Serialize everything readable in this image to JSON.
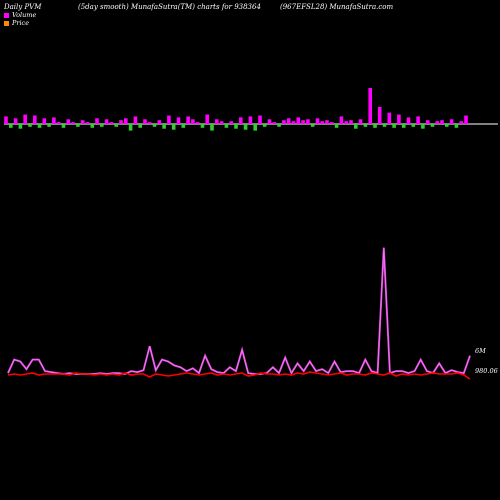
{
  "header": {
    "left": "Daily PVM",
    "mid": "(5day smooth) MunafaSutra(TM) charts for 938364",
    "right": "(967EFSL28) MunafaSutra.com"
  },
  "legend": {
    "volume": "Volume",
    "price": "Price"
  },
  "colors": {
    "volume_up": "#ff00ff",
    "volume_down": "#33cc33",
    "price_line": "#ff0000",
    "pvm_line": "#cc44cc",
    "axis": "#ffffff"
  },
  "chart_data": [
    {
      "type": "bar",
      "name": "volume",
      "values": [
        8,
        -4,
        6,
        -5,
        10,
        -3,
        9,
        -4,
        6,
        -3,
        7,
        2,
        -4,
        5,
        2,
        -3,
        4,
        2,
        -4,
        6,
        -3,
        5,
        2,
        -3,
        4,
        6,
        -7,
        8,
        -4,
        5,
        2,
        -3,
        4,
        -5,
        9,
        -6,
        7,
        -4,
        8,
        5,
        2,
        -4,
        10,
        -7,
        5,
        3,
        -4,
        3,
        -5,
        7,
        -6,
        8,
        -7,
        9,
        -3,
        5,
        2,
        -3,
        4,
        6,
        3,
        7,
        4,
        5,
        -3,
        6,
        3,
        4,
        2,
        -4,
        8,
        3,
        4,
        -5,
        5,
        -3,
        38,
        -4,
        18,
        -3,
        12,
        -4,
        10,
        -4,
        7,
        -3,
        8,
        -5,
        4,
        -3,
        3,
        4,
        -3,
        5,
        -4,
        3,
        9
      ],
      "ylim": [
        -8,
        38
      ]
    },
    {
      "type": "line",
      "name": "pvm",
      "values": [
        2,
        16,
        14,
        6,
        16,
        16,
        4,
        3,
        2,
        1,
        2,
        1,
        1,
        1,
        1,
        2,
        1,
        2,
        2,
        1,
        4,
        3,
        5,
        30,
        5,
        16,
        14,
        10,
        8,
        4,
        7,
        2,
        20,
        6,
        3,
        2,
        8,
        4,
        26,
        2,
        1,
        1,
        2,
        8,
        2,
        18,
        2,
        12,
        4,
        14,
        4,
        6,
        2,
        14,
        3,
        4,
        4,
        2,
        16,
        4,
        2,
        132,
        2,
        4,
        4,
        2,
        4,
        16,
        4,
        2,
        12,
        2,
        5,
        3,
        2,
        20
      ],
      "ylim": [
        0,
        140
      ]
    },
    {
      "type": "line",
      "name": "price",
      "values": [
        0,
        1,
        0,
        1,
        2,
        0,
        1,
        1,
        1,
        1,
        0,
        2,
        1,
        1,
        0,
        1,
        0,
        1,
        0,
        2,
        0,
        1,
        1,
        -2,
        1,
        0,
        -1,
        0,
        1,
        2,
        1,
        0,
        1,
        2,
        0,
        1,
        0,
        1,
        2,
        -1,
        0,
        2,
        1,
        1,
        0,
        1,
        0,
        2,
        1,
        3,
        2,
        1,
        0,
        1,
        2,
        0,
        1,
        1,
        0,
        2,
        1,
        0,
        2,
        -1,
        1,
        0,
        1,
        0,
        1,
        2,
        1,
        1,
        1,
        2,
        0,
        -4
      ],
      "ylim": [
        -10,
        30
      ]
    }
  ],
  "labels": {
    "pvm_label": "6M",
    "price_label": "980.06"
  }
}
